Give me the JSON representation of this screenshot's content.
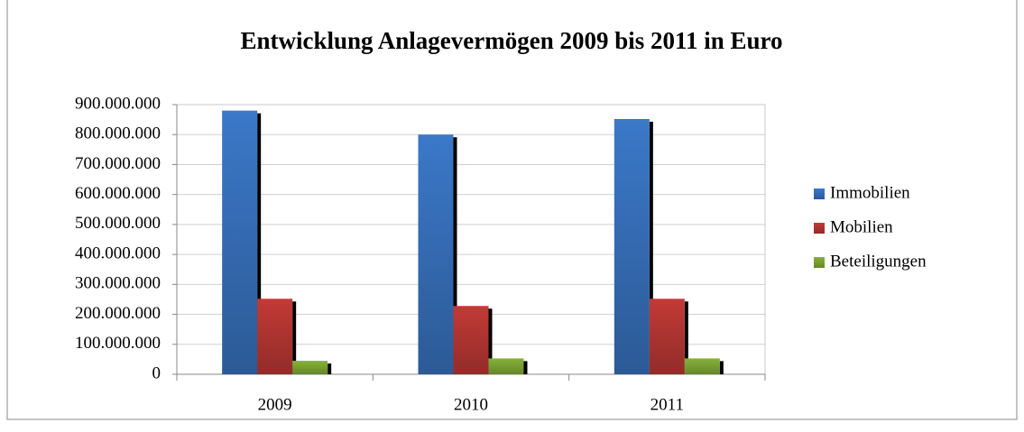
{
  "chart_data": {
    "type": "bar",
    "title": "Entwicklung Anlagevermögen 2009 bis 2011 in Euro",
    "categories": [
      "2009",
      "2010",
      "2011"
    ],
    "series": [
      {
        "name": "Immobilien",
        "color": "#3b78c8",
        "values": [
          880000000,
          800000000,
          852000000
        ]
      },
      {
        "name": "Mobilien",
        "color": "#c23a36",
        "values": [
          252000000,
          228000000,
          252000000
        ]
      },
      {
        "name": "Beteiligungen",
        "color": "#86b23a",
        "values": [
          45000000,
          53000000,
          53000000
        ]
      }
    ],
    "ylim": [
      0,
      900000000
    ],
    "yticks": [
      0,
      {
        "value": 100000000,
        "label": "100.000.000"
      },
      {
        "value": 200000000,
        "label": "200.000.000"
      },
      {
        "value": 300000000,
        "label": "300.000.000"
      },
      {
        "value": 400000000,
        "label": "400.000.000"
      },
      {
        "value": 500000000,
        "label": "500.000.000"
      },
      {
        "value": 600000000,
        "label": "600.000.000"
      },
      {
        "value": 700000000,
        "label": "700.000.000"
      },
      {
        "value": 800000000,
        "label": "800.000.000"
      },
      {
        "value": 900000000,
        "label": "900.000.000"
      }
    ],
    "grid": true,
    "legend": "right"
  }
}
